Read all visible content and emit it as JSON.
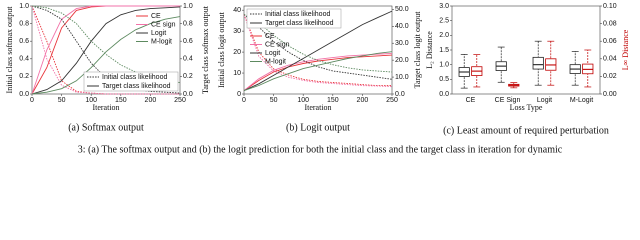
{
  "chart_data": [
    {
      "type": "line",
      "caption": "(a) Softmax output",
      "xlabel": "Iteration",
      "ylabel": "Initial class softmax output",
      "y2label": "Target class softmax output",
      "x": [
        0,
        25,
        50,
        75,
        100,
        125,
        150,
        175,
        200,
        225,
        250
      ],
      "xlim": [
        0,
        250
      ],
      "xticks": [
        0,
        50,
        100,
        150,
        200,
        250
      ],
      "ylim": [
        0,
        1
      ],
      "yticks": [
        {
          "value": 0,
          "label": "0.0"
        },
        0.2,
        0.4,
        0.6,
        0.8,
        {
          "value": 1,
          "label": "1.0"
        }
      ],
      "y2lim": [
        0,
        1
      ],
      "y2ticks": [
        {
          "value": 0,
          "label": "0.0"
        },
        0.2,
        0.4,
        0.6,
        0.8,
        {
          "value": 1,
          "label": "1.0"
        }
      ],
      "legend_loc": "right",
      "style_legend": [
        {
          "label": "Initial class likelihood",
          "dash": "dotted"
        },
        {
          "label": "Target class likelihood",
          "dash": "solid"
        }
      ],
      "series": [
        {
          "name": "CE",
          "color": "#e8343a",
          "values": [
            1,
            0.6,
            0.15,
            0.03,
            0.01,
            0,
            0,
            0,
            0,
            0,
            0
          ],
          "y2_values": [
            0,
            0.3,
            0.75,
            0.95,
            0.99,
            1,
            1,
            1,
            1,
            1,
            1
          ]
        },
        {
          "name": "CE sign",
          "color": "#f272a8",
          "values": [
            1,
            0.4,
            0.1,
            0.02,
            0.01,
            0,
            0,
            0,
            0,
            0,
            0
          ],
          "y2_values": [
            0,
            0.5,
            0.85,
            0.97,
            1,
            1,
            1,
            1,
            1,
            1,
            1
          ]
        },
        {
          "name": "Logit",
          "color": "#333333",
          "values": [
            1,
            0.95,
            0.85,
            0.6,
            0.35,
            0.18,
            0.09,
            0.05,
            0.03,
            0.02,
            0.01
          ],
          "y2_values": [
            0,
            0.05,
            0.15,
            0.35,
            0.6,
            0.8,
            0.9,
            0.95,
            0.97,
            0.98,
            0.99
          ]
        },
        {
          "name": "M-logit",
          "color": "#5d8a60",
          "values": [
            1,
            0.98,
            0.92,
            0.8,
            0.6,
            0.45,
            0.33,
            0.25,
            0.2,
            0.16,
            0.13
          ],
          "y2_values": [
            0,
            0.02,
            0.06,
            0.15,
            0.3,
            0.48,
            0.62,
            0.73,
            0.8,
            0.85,
            0.88
          ]
        }
      ]
    },
    {
      "type": "line",
      "caption": "(b) Logit output",
      "xlabel": "Iteration",
      "ylabel": "Initial class logit output",
      "y2label": "Target class logit output",
      "x": [
        0,
        25,
        50,
        75,
        100,
        125,
        150,
        175,
        200,
        225,
        250
      ],
      "xlim": [
        0,
        250
      ],
      "xticks": [
        0,
        50,
        100,
        150,
        200,
        250
      ],
      "ylim": [
        0,
        42
      ],
      "yticks": [
        0,
        10,
        20,
        30,
        40
      ],
      "y2lim": [
        0,
        52
      ],
      "y2ticks": [
        {
          "value": 0,
          "label": "0.0"
        },
        {
          "value": 10,
          "label": "10.0"
        },
        {
          "value": 20,
          "label": "20.0"
        },
        {
          "value": 30,
          "label": "30.0"
        },
        {
          "value": 40,
          "label": "40.0"
        },
        {
          "value": 50,
          "label": "50.0"
        }
      ],
      "legend_loc": "left",
      "style_legend": [
        {
          "label": "Initial class likelihood",
          "dash": "dotted"
        },
        {
          "label": "Target class likelihood",
          "dash": "solid"
        }
      ],
      "series": [
        {
          "name": "CE",
          "color": "#e8343a",
          "values": [
            38,
            20,
            12,
            9,
            7,
            6,
            5.5,
            5,
            4.5,
            4,
            4
          ],
          "y2_values": [
            2,
            8,
            13,
            16,
            18,
            19.5,
            20.5,
            21.5,
            22,
            22.5,
            23
          ]
        },
        {
          "name": "CE sign",
          "color": "#f272a8",
          "values": [
            38,
            18,
            11,
            8,
            6.5,
            5.5,
            5,
            4.5,
            4,
            3.8,
            3.5
          ],
          "y2_values": [
            2,
            9,
            14,
            17,
            19,
            20.5,
            21.5,
            22.5,
            23,
            23.5,
            24
          ]
        },
        {
          "name": "Logit",
          "color": "#333333",
          "values": [
            38,
            32,
            25,
            20,
            16,
            13,
            11,
            10,
            9,
            8,
            7
          ],
          "y2_values": [
            2,
            6,
            11,
            16,
            21,
            26,
            31,
            36,
            41,
            45,
            49
          ]
        },
        {
          "name": "M-logit",
          "color": "#5d8a60",
          "values": [
            38,
            34,
            28,
            23,
            19,
            16,
            14,
            12.5,
            11.5,
            11,
            10.5
          ],
          "y2_values": [
            2,
            5,
            9,
            12,
            15,
            17,
            19,
            21,
            22.5,
            24,
            25
          ]
        }
      ]
    },
    {
      "type": "box",
      "caption": "(c) Least amount of required perturbation",
      "xlabel": "Loss Type",
      "ylabel": "L₂ Distance",
      "y2label": "L∞ Distance",
      "y2label_color": "#c00000",
      "categories": [
        "CE",
        "CE Sign",
        "Logit",
        "M-Logit"
      ],
      "ylim": [
        0,
        3
      ],
      "yticks": [
        {
          "value": 0,
          "label": "0.0"
        },
        0.5,
        {
          "value": 1,
          "label": "1.0"
        },
        1.5,
        {
          "value": 2,
          "label": "2.0"
        },
        2.5,
        {
          "value": 3,
          "label": "3.0"
        }
      ],
      "y2lim": [
        0,
        0.1
      ],
      "y2ticks": [
        {
          "value": 0,
          "label": "0.00"
        },
        0.02,
        0.04,
        0.06,
        0.08,
        {
          "value": 0.1,
          "label": "0.10"
        }
      ],
      "series": [
        {
          "axis": "y",
          "color": "#222222",
          "values": [
            [
              0.2,
              0.6,
              0.75,
              0.9,
              1.35
            ],
            [
              0.4,
              0.8,
              0.95,
              1.1,
              1.6
            ],
            [
              0.3,
              0.85,
              1.0,
              1.25,
              1.8
            ],
            [
              0.3,
              0.7,
              0.85,
              1.0,
              1.45
            ]
          ]
        },
        {
          "axis": "y2",
          "color": "#c00000",
          "values": [
            [
              0.008,
              0.021,
              0.026,
              0.031,
              0.045
            ],
            [
              0.007,
              0.009,
              0.01,
              0.011,
              0.013
            ],
            [
              0.01,
              0.027,
              0.033,
              0.04,
              0.06
            ],
            [
              0.008,
              0.023,
              0.028,
              0.034,
              0.05
            ]
          ]
        }
      ]
    }
  ],
  "figure_caption": "3: (a) The softmax output and (b) the logit prediction for both the initial class and the target class in iteration for dynamic"
}
